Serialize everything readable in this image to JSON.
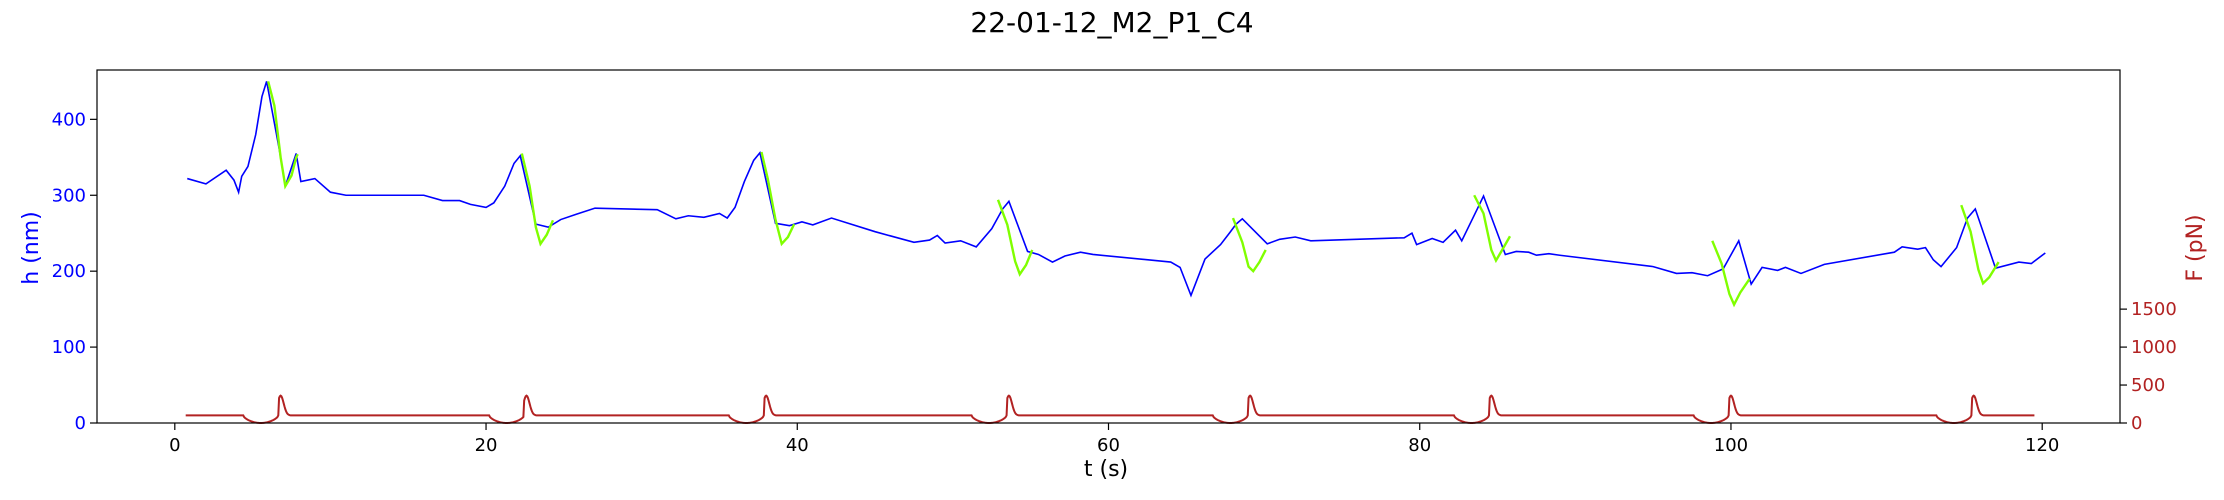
{
  "chart_data": {
    "type": "line",
    "title": "22-01-12_M2_P1_C4",
    "xlabel": "t (s)",
    "ylabel_left": "h (nm)",
    "ylabel_right": "F (pN)",
    "xlim": [
      -5,
      125
    ],
    "ylim_left": [
      0,
      465
    ],
    "ylim_right": [
      0,
      4650
    ],
    "x_ticks": [
      0,
      20,
      40,
      60,
      80,
      100,
      120
    ],
    "y_left_ticks": [
      0,
      100,
      200,
      300,
      400
    ],
    "y_right_ticks": [
      0,
      500,
      1000,
      1500
    ],
    "grid": false,
    "colors": {
      "h_blue": "#0000ff",
      "h_green": "#80ff00",
      "force": "#b22222",
      "left_axis": "#0000ff",
      "right_axis": "#b22222"
    },
    "series": [
      {
        "name": "",
        "axis": "left",
        "color": "#0000ff",
        "points": [
          [
            0.8,
            322
          ],
          [
            2,
            315
          ],
          [
            3.3,
            333
          ],
          [
            3.8,
            320
          ],
          [
            4.1,
            304
          ],
          [
            4.3,
            325
          ],
          [
            4.7,
            338
          ],
          [
            5.2,
            380
          ],
          [
            5.6,
            430
          ],
          [
            5.9,
            450
          ],
          [
            6.7,
            362
          ],
          [
            7.1,
            312
          ],
          [
            7.8,
            355
          ],
          [
            8.1,
            318
          ],
          [
            9,
            322
          ],
          [
            10,
            304
          ],
          [
            11,
            300
          ],
          [
            16,
            300
          ],
          [
            17.2,
            293
          ],
          [
            18.3,
            293
          ],
          [
            19,
            288
          ],
          [
            20,
            284
          ],
          [
            20.5,
            290
          ],
          [
            21.2,
            312
          ],
          [
            21.8,
            342
          ],
          [
            22.2,
            352
          ],
          [
            23.2,
            262
          ],
          [
            24,
            258
          ],
          [
            24.8,
            268
          ],
          [
            25.8,
            275
          ],
          [
            27,
            283
          ],
          [
            31,
            281
          ],
          [
            32.2,
            269
          ],
          [
            33,
            273
          ],
          [
            34,
            271
          ],
          [
            35,
            276
          ],
          [
            35.5,
            270
          ],
          [
            36,
            284
          ],
          [
            36.6,
            318
          ],
          [
            37.2,
            346
          ],
          [
            37.6,
            356
          ],
          [
            38.6,
            263
          ],
          [
            39.5,
            260
          ],
          [
            40.3,
            265
          ],
          [
            41,
            261
          ],
          [
            42.2,
            270
          ],
          [
            45,
            252
          ],
          [
            47.5,
            238
          ],
          [
            48.5,
            241
          ],
          [
            49,
            247
          ],
          [
            49.5,
            237
          ],
          [
            50.5,
            240
          ],
          [
            51.5,
            232
          ],
          [
            52.5,
            256
          ],
          [
            53.2,
            282
          ],
          [
            53.6,
            292
          ],
          [
            54.8,
            226
          ],
          [
            55.5,
            222
          ],
          [
            56.4,
            212
          ],
          [
            57.2,
            220
          ],
          [
            58.2,
            225
          ],
          [
            59,
            222
          ],
          [
            64,
            212
          ],
          [
            64.6,
            205
          ],
          [
            65.3,
            168
          ],
          [
            66.2,
            216
          ],
          [
            67.2,
            235
          ],
          [
            67.8,
            251
          ],
          [
            68.2,
            262
          ],
          [
            68.6,
            269
          ],
          [
            70.2,
            236
          ],
          [
            71,
            242
          ],
          [
            72,
            245
          ],
          [
            73,
            240
          ],
          [
            79,
            244
          ],
          [
            79.5,
            250
          ],
          [
            79.8,
            235
          ],
          [
            80.8,
            243
          ],
          [
            81.5,
            238
          ],
          [
            82.3,
            254
          ],
          [
            82.7,
            240
          ],
          [
            83.7,
            282
          ],
          [
            84.1,
            299
          ],
          [
            85.5,
            222
          ],
          [
            86.2,
            226
          ],
          [
            87,
            225
          ],
          [
            87.5,
            221
          ],
          [
            88.3,
            223
          ],
          [
            89,
            221
          ],
          [
            95,
            206
          ],
          [
            96.5,
            197
          ],
          [
            97.5,
            198
          ],
          [
            98.5,
            194
          ],
          [
            99.5,
            203
          ],
          [
            100.5,
            240
          ],
          [
            101.3,
            183
          ],
          [
            102,
            205
          ],
          [
            103,
            201
          ],
          [
            103.5,
            205
          ],
          [
            104.5,
            197
          ],
          [
            106,
            209
          ],
          [
            110.5,
            225
          ],
          [
            111,
            232
          ],
          [
            112,
            229
          ],
          [
            112.5,
            231
          ],
          [
            113,
            215
          ],
          [
            113.5,
            206
          ],
          [
            114.5,
            231
          ],
          [
            115.2,
            270
          ],
          [
            115.7,
            282
          ],
          [
            117,
            204
          ],
          [
            118.5,
            212
          ],
          [
            119.3,
            210
          ],
          [
            120.2,
            224
          ]
        ]
      },
      {
        "name": "",
        "axis": "left",
        "color": "#80ff00",
        "segments": [
          [
            [
              6.0,
              450
            ],
            [
              6.4,
              418
            ],
            [
              6.8,
              350
            ],
            [
              7.1,
              312
            ],
            [
              7.5,
              326
            ],
            [
              7.8,
              350
            ],
            [
              7.9,
              354
            ]
          ],
          [
            [
              22.3,
              355
            ],
            [
              22.8,
              312
            ],
            [
              23.2,
              258
            ],
            [
              23.5,
              236
            ],
            [
              23.9,
              248
            ],
            [
              24.3,
              267
            ]
          ],
          [
            [
              37.7,
              357
            ],
            [
              38.1,
              322
            ],
            [
              38.6,
              268
            ],
            [
              39.0,
              236
            ],
            [
              39.4,
              245
            ],
            [
              39.8,
              262
            ]
          ],
          [
            [
              52.9,
              294
            ],
            [
              53.5,
              261
            ],
            [
              54.0,
              213
            ],
            [
              54.3,
              196
            ],
            [
              54.7,
              208
            ],
            [
              55.1,
              228
            ]
          ],
          [
            [
              68.0,
              270
            ],
            [
              68.6,
              238
            ],
            [
              69.0,
              206
            ],
            [
              69.3,
              200
            ],
            [
              69.7,
              212
            ],
            [
              70.1,
              228
            ]
          ],
          [
            [
              83.5,
              300
            ],
            [
              84.1,
              276
            ],
            [
              84.6,
              228
            ],
            [
              84.9,
              214
            ],
            [
              85.3,
              228
            ],
            [
              85.8,
              246
            ]
          ],
          [
            [
              98.8,
              240
            ],
            [
              99.4,
              210
            ],
            [
              99.9,
              170
            ],
            [
              100.2,
              156
            ],
            [
              100.6,
              172
            ],
            [
              101.2,
              190
            ]
          ],
          [
            [
              114.8,
              287
            ],
            [
              115.4,
              252
            ],
            [
              115.9,
              202
            ],
            [
              116.2,
              184
            ],
            [
              116.6,
              192
            ],
            [
              117.2,
              212
            ]
          ]
        ]
      },
      {
        "name": "",
        "axis": "right",
        "color": "#b22222",
        "spike_times": [
          6.8,
          22.6,
          38.0,
          53.6,
          69.1,
          84.6,
          100.0,
          115.6
        ],
        "baseline": 100,
        "dip": 0,
        "peak": 360,
        "x_range": [
          0.7,
          119.5
        ]
      }
    ]
  }
}
